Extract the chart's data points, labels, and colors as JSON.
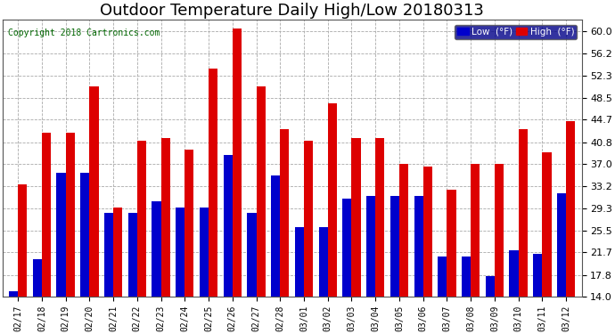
{
  "title": "Outdoor Temperature Daily High/Low 20180313",
  "copyright": "Copyright 2018 Cartronics.com",
  "categories": [
    "02/17",
    "02/18",
    "02/19",
    "02/20",
    "02/21",
    "02/22",
    "02/23",
    "02/24",
    "02/25",
    "02/26",
    "02/27",
    "02/28",
    "03/01",
    "03/02",
    "03/03",
    "03/04",
    "03/05",
    "03/06",
    "03/07",
    "03/08",
    "03/09",
    "03/10",
    "03/11",
    "03/12"
  ],
  "lows": [
    15.0,
    20.5,
    35.5,
    35.5,
    28.5,
    28.5,
    30.5,
    29.5,
    29.5,
    38.5,
    28.5,
    35.0,
    26.0,
    26.0,
    31.0,
    31.5,
    31.5,
    31.5,
    21.0,
    21.0,
    17.5,
    22.0,
    21.5,
    32.0
  ],
  "highs": [
    33.5,
    42.5,
    42.5,
    50.5,
    29.5,
    41.0,
    41.5,
    39.5,
    53.5,
    60.5,
    50.5,
    43.0,
    41.0,
    47.5,
    41.5,
    41.5,
    37.0,
    36.5,
    32.5,
    37.0,
    37.0,
    43.0,
    39.0,
    44.5
  ],
  "low_color": "#0000cc",
  "high_color": "#dd0000",
  "background_color": "#ffffff",
  "yticks": [
    14.0,
    17.8,
    21.7,
    25.5,
    29.3,
    33.2,
    37.0,
    40.8,
    44.7,
    48.5,
    52.3,
    56.2,
    60.0
  ],
  "ymin": 14.0,
  "ymax": 62.0,
  "ybaseline": 14.0,
  "title_fontsize": 13,
  "legend_low_label": "Low  (°F)",
  "legend_high_label": "High  (°F)"
}
